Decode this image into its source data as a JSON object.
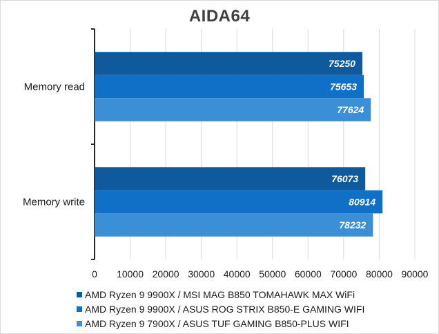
{
  "chart_data": {
    "type": "bar",
    "orientation": "horizontal",
    "title": "AIDA64",
    "categories": [
      "Memory read",
      "Memory write"
    ],
    "series": [
      {
        "name": "AMD Ryzen 9 9900X / MSI MAG B850 TOMAHAWK MAX WiFi",
        "values": [
          75250,
          76073
        ],
        "color": "#0f5a9c"
      },
      {
        "name": "AMD Ryzen 9 9900X / ASUS ROG STRIX B850-E GAMING WIFI",
        "values": [
          75653,
          80914
        ],
        "color": "#1070c8"
      },
      {
        "name": "AMD Ryzen 9 7900X / ASUS TUF GAMING B850-PLUS WIFI",
        "values": [
          77624,
          78232
        ],
        "color": "#3a8fd6"
      }
    ],
    "xlim": [
      0,
      90000
    ],
    "xticks": [
      0,
      10000,
      20000,
      30000,
      40000,
      50000,
      60000,
      70000,
      80000,
      90000
    ],
    "grid": true,
    "data_labels": true,
    "legend_position": "bottom"
  }
}
